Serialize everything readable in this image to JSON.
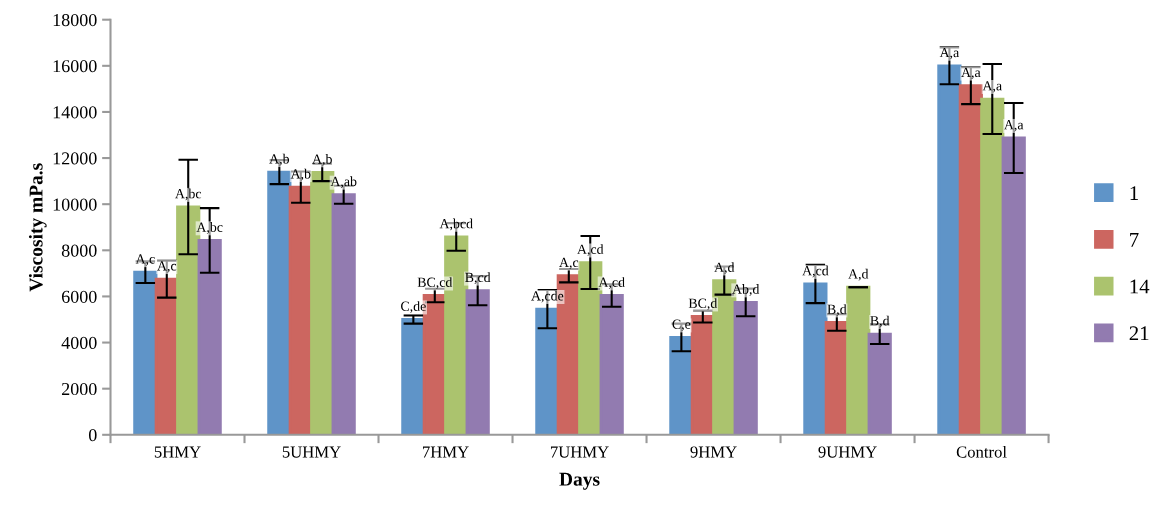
{
  "chart_data": {
    "type": "bar",
    "xlabel": "Days",
    "ylabel": "Viscosity mPa.s",
    "categories": [
      "5HMY",
      "5UHMY",
      "7HMY",
      "7UHMY",
      "9HMY",
      "9UHMY",
      "Control"
    ],
    "ylim": [
      0,
      18000
    ],
    "yticks": [
      0,
      2000,
      4000,
      6000,
      8000,
      10000,
      12000,
      14000,
      16000,
      18000
    ],
    "grid": false,
    "legend": "right",
    "series": [
      {
        "name": "1",
        "color": "#5f94c8",
        "values": [
          7050,
          11390,
          5000,
          5450,
          4220,
          6540,
          16000
        ],
        "errors": [
          470,
          520,
          180,
          830,
          600,
          830,
          800
        ],
        "value_labels": [
          "A,c",
          "A,b",
          "C,de",
          "A,cde",
          "C,e",
          "A,cd",
          "A,a"
        ]
      },
      {
        "name": "7",
        "color": "#cc6660",
        "values": [
          6750,
          10740,
          6040,
          6900,
          5130,
          4870,
          15140
        ],
        "errors": [
          800,
          680,
          290,
          290,
          260,
          360,
          800
        ],
        "value_labels": [
          "A,c",
          "A,b",
          "BC,cd",
          "A,c",
          "BC,d",
          "B,d",
          "A,a"
        ]
      },
      {
        "name": "14",
        "color": "#abc36e",
        "values": [
          9880,
          11380,
          8580,
          7470,
          6690,
          6400,
          14560
        ],
        "errors": [
          2050,
          380,
          600,
          1150,
          610,
          0,
          1520
        ],
        "value_labels": [
          "A,bc",
          "A,b",
          "A,bcd",
          "A,cd",
          "A,d",
          "A,d",
          "A,a"
        ]
      },
      {
        "name": "21",
        "color": "#927bb0",
        "values": [
          8430,
          10410,
          6250,
          6040,
          5740,
          4370,
          12870
        ],
        "errors": [
          1400,
          390,
          630,
          490,
          600,
          430,
          1520
        ],
        "value_labels": [
          "A,bc",
          "A,ab",
          "B,cd",
          "A,cd",
          "Ab,d",
          "B,d",
          "A,a"
        ]
      }
    ]
  }
}
